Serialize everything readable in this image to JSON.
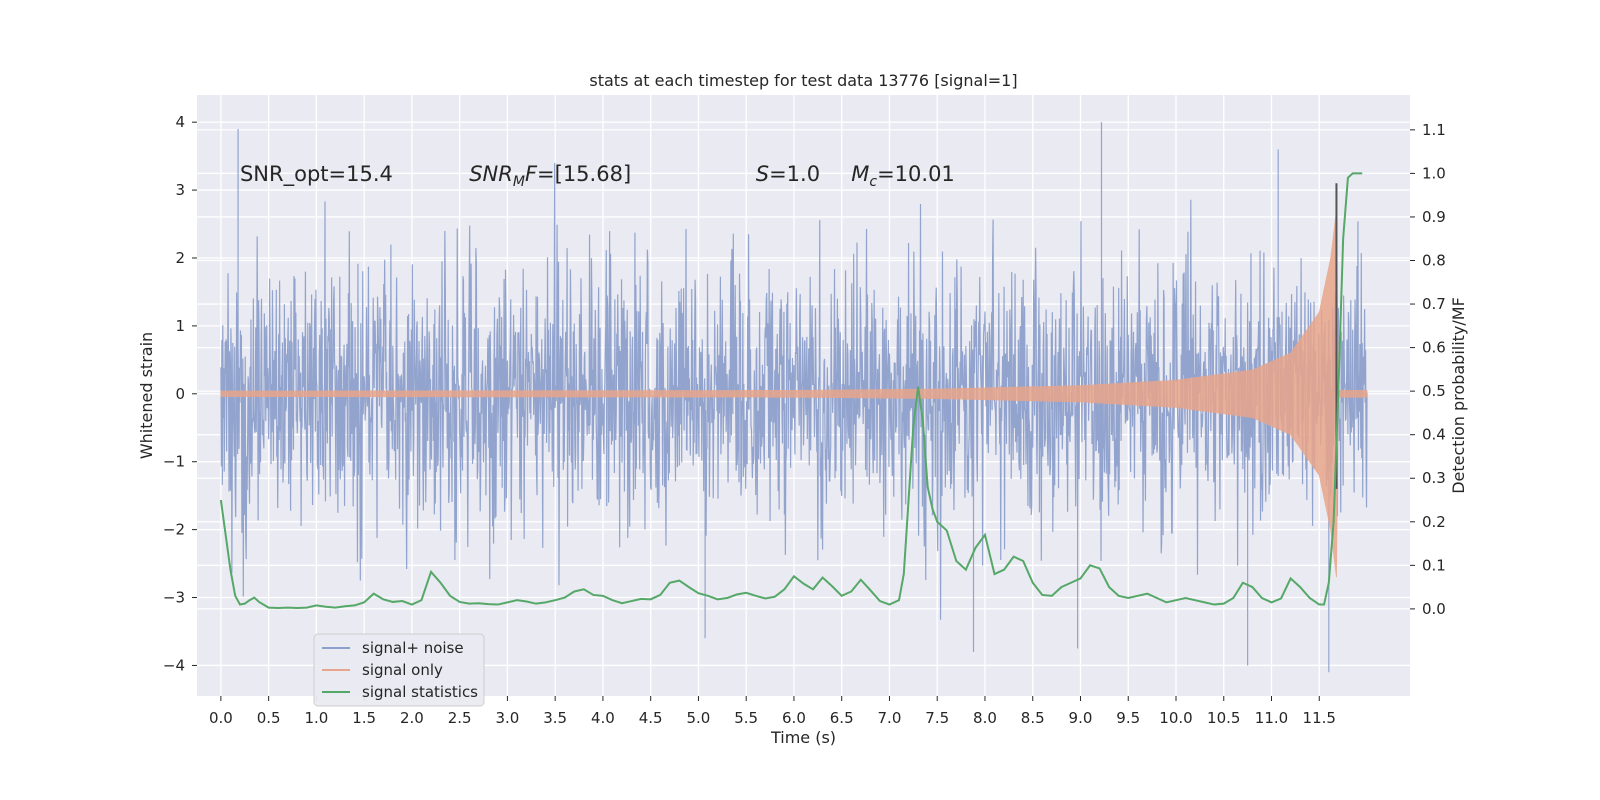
{
  "chart_data": {
    "type": "line",
    "title": "stats at each timestep for test data 13776 [signal=1]",
    "xlabel": "Time (s)",
    "ylabel": "Whitened strain",
    "y2label": "Detection probability/MF",
    "xlim": [
      -0.25,
      12.45
    ],
    "ylim": [
      -4.45,
      4.4
    ],
    "y2lim": [
      -0.2,
      1.18
    ],
    "x_ticks": [
      0.0,
      0.5,
      1.0,
      1.5,
      2.0,
      2.5,
      3.0,
      3.5,
      4.0,
      4.5,
      5.0,
      5.5,
      6.0,
      6.5,
      7.0,
      7.5,
      8.0,
      8.5,
      9.0,
      9.5,
      10.0,
      10.5,
      11.0,
      11.5
    ],
    "x_tick_labels": [
      "0.0",
      "0.5",
      "1.0",
      "1.5",
      "2.0",
      "2.5",
      "3.0",
      "3.5",
      "4.0",
      "4.5",
      "5.0",
      "5.5",
      "6.0",
      "6.5",
      "7.0",
      "7.5",
      "8.0",
      "8.5",
      "9.0",
      "9.5",
      "10.0",
      "10.5",
      "11.0",
      "11.5"
    ],
    "y_ticks": [
      -4,
      -3,
      -2,
      -1,
      0,
      1,
      2,
      3,
      4
    ],
    "y_tick_labels": [
      "−4",
      "−3",
      "−2",
      "−1",
      "0",
      "1",
      "2",
      "3",
      "4"
    ],
    "y2_ticks": [
      0.0,
      0.1,
      0.2,
      0.3,
      0.4,
      0.5,
      0.6,
      0.7,
      0.8,
      0.9,
      1.0,
      1.1
    ],
    "y2_tick_labels": [
      "0.0",
      "0.1",
      "0.2",
      "0.3",
      "0.4",
      "0.5",
      "0.6",
      "0.7",
      "0.8",
      "0.9",
      "1.0",
      "1.1"
    ],
    "grid": true,
    "legend_position": "bottom-left",
    "series": [
      {
        "name": "signal+ noise",
        "color": "#8da0cb",
        "axis": "left",
        "x_range": [
          0.0,
          12.0
        ],
        "amplitude_envelope": [
          1.9,
          2.4,
          3.0,
          3.9
        ],
        "extreme_peaks": [
          [
            0.18,
            3.9
          ],
          [
            9.22,
            4.0
          ],
          [
            11.07,
            3.6
          ],
          [
            7.88,
            -3.8
          ],
          [
            8.97,
            -3.75
          ],
          [
            10.75,
            -4.0
          ],
          [
            11.6,
            -4.1
          ],
          [
            5.07,
            -3.6
          ]
        ]
      },
      {
        "name": "signal only",
        "color": "#e8a58a",
        "axis": "left",
        "chirp_amplitude": [
          [
            0.0,
            0.04
          ],
          [
            6.0,
            0.05
          ],
          [
            7.5,
            0.07
          ],
          [
            9.0,
            0.12
          ],
          [
            10.0,
            0.2
          ],
          [
            10.8,
            0.35
          ],
          [
            11.2,
            0.6
          ],
          [
            11.5,
            1.2
          ],
          [
            11.62,
            2.0
          ],
          [
            11.68,
            2.7
          ],
          [
            11.7,
            0.05
          ],
          [
            12.0,
            0.05
          ]
        ]
      },
      {
        "name": "signal statistics",
        "color": "#55a868",
        "axis": "right",
        "x": [
          0.0,
          0.05,
          0.1,
          0.15,
          0.2,
          0.25,
          0.3,
          0.35,
          0.4,
          0.5,
          0.6,
          0.7,
          0.8,
          0.9,
          1.0,
          1.1,
          1.2,
          1.3,
          1.4,
          1.5,
          1.6,
          1.7,
          1.8,
          1.9,
          2.0,
          2.1,
          2.2,
          2.3,
          2.4,
          2.5,
          2.6,
          2.7,
          2.8,
          2.9,
          3.0,
          3.1,
          3.2,
          3.3,
          3.4,
          3.5,
          3.6,
          3.7,
          3.8,
          3.9,
          4.0,
          4.1,
          4.2,
          4.3,
          4.4,
          4.5,
          4.6,
          4.7,
          4.8,
          4.9,
          5.0,
          5.1,
          5.2,
          5.3,
          5.4,
          5.5,
          5.6,
          5.7,
          5.8,
          5.9,
          6.0,
          6.1,
          6.2,
          6.3,
          6.4,
          6.5,
          6.6,
          6.7,
          6.8,
          6.9,
          7.0,
          7.1,
          7.15,
          7.2,
          7.25,
          7.3,
          7.35,
          7.4,
          7.45,
          7.5,
          7.6,
          7.7,
          7.8,
          7.9,
          8.0,
          8.1,
          8.2,
          8.3,
          8.4,
          8.5,
          8.6,
          8.7,
          8.8,
          8.9,
          9.0,
          9.1,
          9.2,
          9.3,
          9.4,
          9.5,
          9.6,
          9.7,
          9.8,
          9.9,
          10.0,
          10.1,
          10.2,
          10.3,
          10.4,
          10.5,
          10.6,
          10.7,
          10.8,
          10.9,
          11.0,
          11.1,
          11.2,
          11.3,
          11.4,
          11.5,
          11.55,
          11.6,
          11.65,
          11.7,
          11.75,
          11.8,
          11.85,
          11.9,
          11.95
        ],
        "values": [
          0.25,
          0.17,
          0.09,
          0.03,
          0.01,
          0.012,
          0.02,
          0.026,
          0.016,
          0.003,
          0.002,
          0.003,
          0.002,
          0.003,
          0.008,
          0.005,
          0.003,
          0.006,
          0.008,
          0.015,
          0.035,
          0.022,
          0.016,
          0.018,
          0.01,
          0.02,
          0.085,
          0.06,
          0.03,
          0.016,
          0.012,
          0.013,
          0.011,
          0.01,
          0.015,
          0.02,
          0.017,
          0.012,
          0.015,
          0.02,
          0.026,
          0.04,
          0.045,
          0.032,
          0.03,
          0.02,
          0.013,
          0.018,
          0.023,
          0.022,
          0.032,
          0.06,
          0.065,
          0.05,
          0.036,
          0.03,
          0.022,
          0.025,
          0.033,
          0.037,
          0.03,
          0.024,
          0.028,
          0.045,
          0.075,
          0.058,
          0.045,
          0.072,
          0.052,
          0.03,
          0.04,
          0.067,
          0.043,
          0.018,
          0.01,
          0.02,
          0.08,
          0.25,
          0.42,
          0.51,
          0.43,
          0.28,
          0.23,
          0.2,
          0.18,
          0.11,
          0.09,
          0.14,
          0.17,
          0.08,
          0.09,
          0.12,
          0.11,
          0.06,
          0.032,
          0.03,
          0.05,
          0.06,
          0.07,
          0.1,
          0.093,
          0.05,
          0.03,
          0.025,
          0.03,
          0.035,
          0.025,
          0.015,
          0.02,
          0.025,
          0.02,
          0.015,
          0.01,
          0.012,
          0.025,
          0.06,
          0.05,
          0.025,
          0.015,
          0.024,
          0.07,
          0.05,
          0.025,
          0.01,
          0.01,
          0.06,
          0.2,
          0.5,
          0.85,
          0.99,
          1.0,
          1.0,
          1.0
        ]
      }
    ],
    "vertical_marker": {
      "x": 11.68,
      "y": [
        -1.4,
        3.1
      ],
      "color": "#555555"
    },
    "annotations": [
      {
        "name": "snr-opt",
        "x": 0.2,
        "y": 3.13,
        "parts": [
          {
            "t": "SNR_opt=15.4"
          }
        ]
      },
      {
        "name": "snr-mf",
        "x": 2.6,
        "y": 3.13,
        "parts": [
          {
            "t": "SNR",
            "i": true
          },
          {
            "t": "M",
            "i": true,
            "sub": true
          },
          {
            "t": "F",
            "i": true
          },
          {
            "t": "=[15.68]"
          }
        ]
      },
      {
        "name": "s-value",
        "x": 5.6,
        "y": 3.13,
        "parts": [
          {
            "t": "S",
            "i": true
          },
          {
            "t": "=1.0"
          }
        ]
      },
      {
        "name": "mc-value",
        "x": 6.6,
        "y": 3.13,
        "parts": [
          {
            "t": "M",
            "i": true
          },
          {
            "t": "c",
            "i": true,
            "sub": true
          },
          {
            "t": "=10.01"
          }
        ]
      }
    ]
  }
}
